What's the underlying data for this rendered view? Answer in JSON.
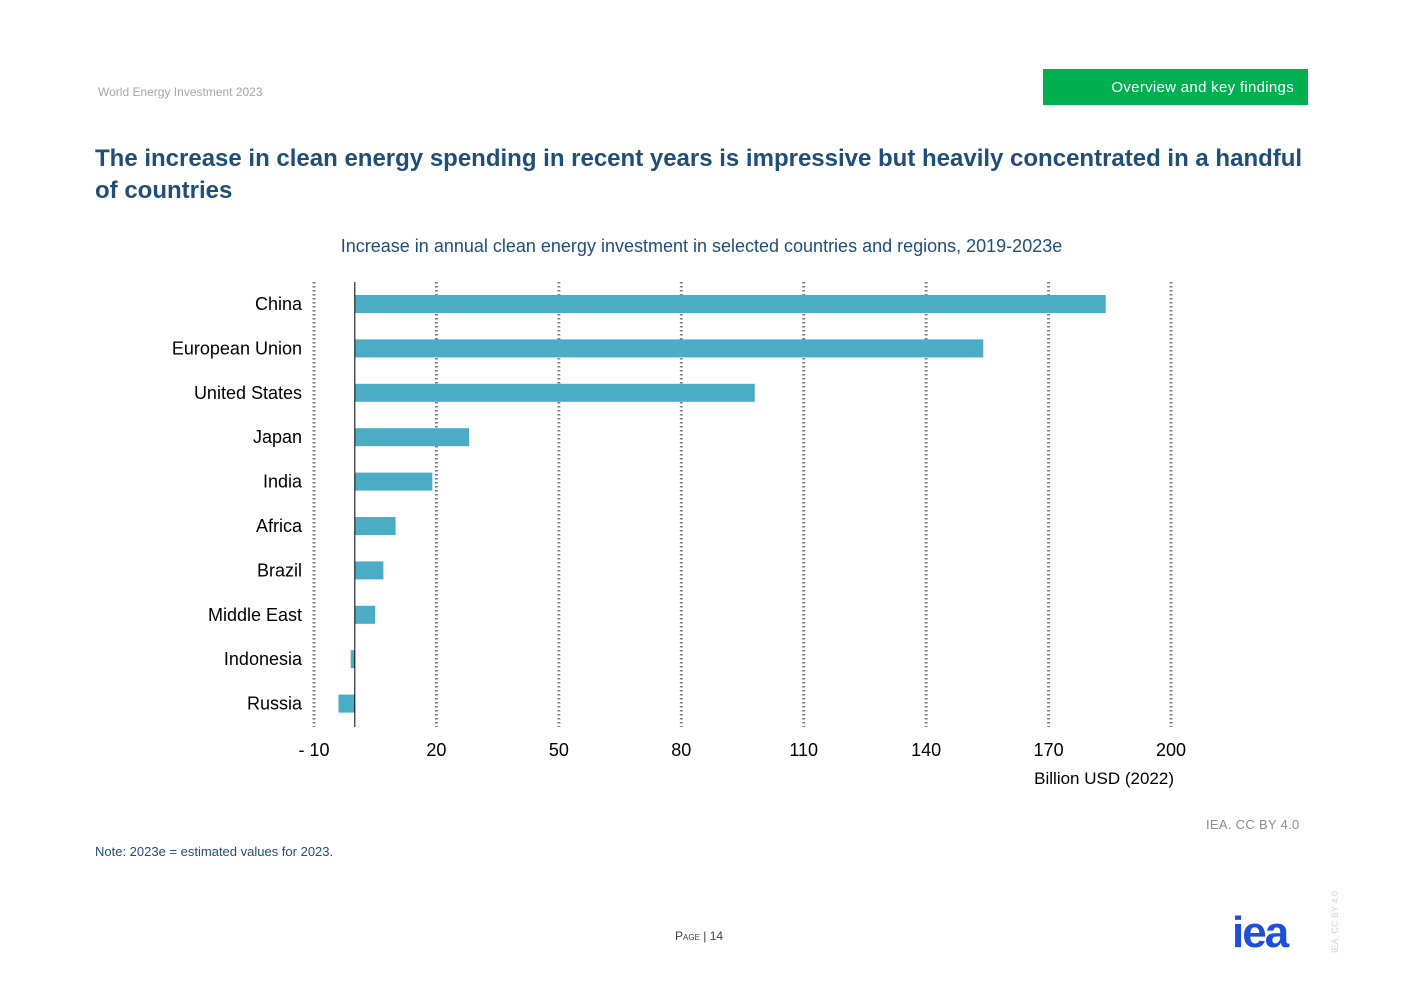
{
  "header": {
    "doc_title": "World Energy Investment 2023",
    "section_tag": "Overview and key findings"
  },
  "headline": "The increase in clean energy spending in recent years is impressive but heavily concentrated in a handful of countries",
  "chart_data": {
    "type": "bar",
    "orientation": "horizontal",
    "title": "Increase in annual clean energy investment in selected countries and regions, 2019-2023e",
    "xlabel": "Billion USD (2022)",
    "ylabel": "",
    "categories": [
      "China",
      "European Union",
      "United States",
      "Japan",
      "India",
      "Africa",
      "Brazil",
      "Middle East",
      "Indonesia",
      "Russia"
    ],
    "values": [
      184,
      154,
      98,
      28,
      19,
      10,
      7,
      5,
      -1,
      -4
    ],
    "xlim": [
      -10,
      200
    ],
    "xticks": [
      -10,
      20,
      50,
      80,
      110,
      140,
      170,
      200
    ],
    "xtick_labels": [
      "- 10",
      "20",
      "50",
      "80",
      "110",
      "140",
      "170",
      "200"
    ],
    "grid": "vertical dotted",
    "bar_color": "#4bacc6"
  },
  "note": "Note:  2023e = estimated values for 2023.",
  "credit": "IEA. CC BY 4.0",
  "footer": {
    "page_label": "Page",
    "page_number": "| 14",
    "side_license": "IEA. CC BY 4.0",
    "logo_text": "iea",
    "logo_color": "#1e4fd8"
  }
}
